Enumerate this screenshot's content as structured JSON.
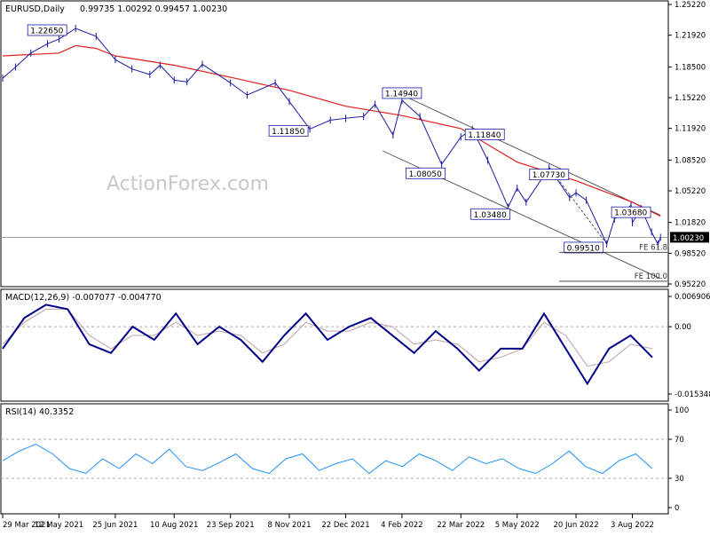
{
  "header": {
    "symbol": "EURUSD,Daily",
    "ohlc": "0.99735 1.00292 0.99457 1.00230"
  },
  "watermark": "ActionForex.com",
  "colors": {
    "price": "#1a1aa0",
    "sma": "#e02020",
    "macd": "#00008b",
    "signal": "#c0a0a0",
    "rsi": "#1e90ff",
    "grid": "#aaaaaa",
    "current_line": "#808080"
  },
  "chart_data": [
    {
      "type": "line",
      "panel": "price",
      "ylim": [
        0.9522,
        1.2522
      ],
      "y_ticks": [
        "1.25220",
        "1.21920",
        "1.18500",
        "1.15220",
        "1.11920",
        "1.08520",
        "1.05220",
        "1.01820",
        "0.98520",
        "0.95220"
      ],
      "current_price": "1.00230",
      "x_ticks": [
        "29 Mar 2021",
        "12 May 2021",
        "25 Jun 2021",
        "10 Aug 2021",
        "23 Sep 2021",
        "8 Nov 2021",
        "22 Dec 2021",
        "4 Feb 2022",
        "22 Mar 2022",
        "5 May 2022",
        "20 Jun 2022",
        "3 Aug 2022"
      ],
      "series": [
        {
          "key": "close",
          "points": [
            [
              "29 Mar 2021",
              1.173
            ],
            [
              "8 Apr 2021",
              1.185
            ],
            [
              "20 Apr 2021",
              1.2
            ],
            [
              "3 May 2021",
              1.21
            ],
            [
              "12 May 2021",
              1.215
            ],
            [
              "25 May 2021",
              1.2265
            ],
            [
              "10 Jun 2021",
              1.218
            ],
            [
              "25 Jun 2021",
              1.193
            ],
            [
              "8 Jul 2021",
              1.183
            ],
            [
              "22 Jul 2021",
              1.177
            ],
            [
              "30 Jul 2021",
              1.187
            ],
            [
              "10 Aug 2021",
              1.171
            ],
            [
              "20 Aug 2021",
              1.169
            ],
            [
              "1 Sep 2021",
              1.188
            ],
            [
              "23 Sep 2021",
              1.168
            ],
            [
              "6 Oct 2021",
              1.155
            ],
            [
              "28 Oct 2021",
              1.168
            ],
            [
              "8 Nov 2021",
              1.148
            ],
            [
              "24 Nov 2021",
              1.1185
            ],
            [
              "10 Dec 2021",
              1.128
            ],
            [
              "22 Dec 2021",
              1.13
            ],
            [
              "5 Jan 2022",
              1.132
            ],
            [
              "14 Jan 2022",
              1.145
            ],
            [
              "28 Jan 2022",
              1.112
            ],
            [
              "4 Feb 2022",
              1.1494
            ],
            [
              "18 Feb 2022",
              1.132
            ],
            [
              "7 Mar 2022",
              1.0805
            ],
            [
              "22 Mar 2022",
              1.11
            ],
            [
              "31 Mar 2022",
              1.1184
            ],
            [
              "12 Apr 2022",
              1.085
            ],
            [
              "28 Apr 2022",
              1.0348
            ],
            [
              "5 May 2022",
              1.055
            ],
            [
              "12 May 2022",
              1.04
            ],
            [
              "30 May 2022",
              1.077
            ],
            [
              "15 Jun 2022",
              1.045
            ],
            [
              "20 Jun 2022",
              1.05
            ],
            [
              "28 Jun 2022",
              1.042
            ],
            [
              "14 Jul 2022",
              0.9951
            ],
            [
              "20 Jul 2022",
              1.022
            ],
            [
              "2 Aug 2022",
              1.0368
            ],
            [
              "3 Aug 2022",
              1.018
            ],
            [
              "10 Aug 2022",
              1.033
            ],
            [
              "18 Aug 2022",
              1.008
            ],
            [
              "23 Aug 2022",
              0.995
            ],
            [
              "25 Aug 2022",
              1.0023
            ]
          ]
        },
        {
          "key": "sma",
          "points": [
            [
              "29 Mar 2021",
              1.197
            ],
            [
              "12 May 2021",
              1.2
            ],
            [
              "25 May 2021",
              1.208
            ],
            [
              "10 Jun 2021",
              1.205
            ],
            [
              "25 Jun 2021",
              1.197
            ],
            [
              "10 Aug 2021",
              1.187
            ],
            [
              "23 Sep 2021",
              1.174
            ],
            [
              "8 Nov 2021",
              1.16
            ],
            [
              "22 Dec 2021",
              1.143
            ],
            [
              "4 Feb 2022",
              1.133
            ],
            [
              "22 Mar 2022",
              1.119
            ],
            [
              "5 May 2022",
              1.083
            ],
            [
              "20 Jun 2022",
              1.063
            ],
            [
              "3 Aug 2022",
              1.04
            ],
            [
              "25 Aug 2022",
              1.025
            ]
          ]
        }
      ],
      "annotations": [
        {
          "text": "1.22650",
          "date": "25 May 2021",
          "value": 1.2265
        },
        {
          "text": "1.14940",
          "date": "4 Feb 2022",
          "value": 1.1494
        },
        {
          "text": "1.11850",
          "date": "24 Nov 2021",
          "value": 1.1185
        },
        {
          "text": "1.11840",
          "date": "31 Mar 2022",
          "value": 1.1184
        },
        {
          "text": "1.08050",
          "date": "7 Mar 2022",
          "value": 1.0805
        },
        {
          "text": "1.07730",
          "date": "30 May 2022",
          "value": 1.0773
        },
        {
          "text": "1.03480",
          "date": "28 Apr 2022",
          "value": 1.0348
        },
        {
          "text": "1.03680",
          "date": "2 Aug 2022",
          "value": 1.0368
        },
        {
          "text": "0.99510",
          "date": "14 Jul 2022",
          "value": 0.9951
        }
      ],
      "fe_levels": [
        {
          "label": "FE 61.8",
          "value": 0.9862
        },
        {
          "label": "FE 100.0",
          "value": 0.9551
        }
      ]
    },
    {
      "type": "line",
      "panel": "macd",
      "title": "MACD(12,26,9) -0.007077 -0.004770",
      "y_ticks": [
        "0.006906",
        "0.00",
        "-0.015348"
      ],
      "ylim": [
        -0.015348,
        0.006906
      ],
      "series": [
        {
          "key": "macd",
          "values": [
            -0.005,
            0.002,
            0.005,
            0.004,
            -0.004,
            -0.006,
            0.0,
            -0.003,
            0.003,
            -0.004,
            0.0,
            -0.003,
            -0.008,
            -0.002,
            0.003,
            -0.003,
            0.0,
            0.002,
            -0.002,
            -0.006,
            -0.001,
            -0.005,
            -0.01,
            -0.005,
            -0.005,
            0.003,
            -0.005,
            -0.013,
            -0.005,
            -0.002,
            -0.007
          ]
        },
        {
          "key": "signal",
          "values": [
            -0.004,
            0.001,
            0.004,
            0.004,
            -0.002,
            -0.005,
            -0.002,
            -0.002,
            0.001,
            -0.002,
            -0.001,
            -0.002,
            -0.006,
            -0.004,
            0.001,
            -0.001,
            -0.001,
            0.001,
            0.0,
            -0.004,
            -0.003,
            -0.004,
            -0.008,
            -0.007,
            -0.005,
            0.001,
            -0.002,
            -0.009,
            -0.008,
            -0.004,
            -0.005
          ]
        }
      ]
    },
    {
      "type": "line",
      "panel": "rsi",
      "title": "RSI(14) 40.3352",
      "ylim": [
        0,
        100
      ],
      "y_ticks": [
        "100",
        "70",
        "30",
        "0"
      ],
      "levels": [
        70,
        30
      ],
      "series": [
        {
          "key": "rsi",
          "values": [
            48,
            58,
            65,
            55,
            40,
            35,
            50,
            40,
            55,
            45,
            60,
            42,
            38,
            46,
            55,
            40,
            35,
            50,
            55,
            38,
            45,
            50,
            35,
            48,
            42,
            55,
            48,
            38,
            52,
            45,
            50,
            40,
            35,
            45,
            58,
            42,
            35,
            48,
            55,
            40
          ]
        }
      ]
    }
  ]
}
